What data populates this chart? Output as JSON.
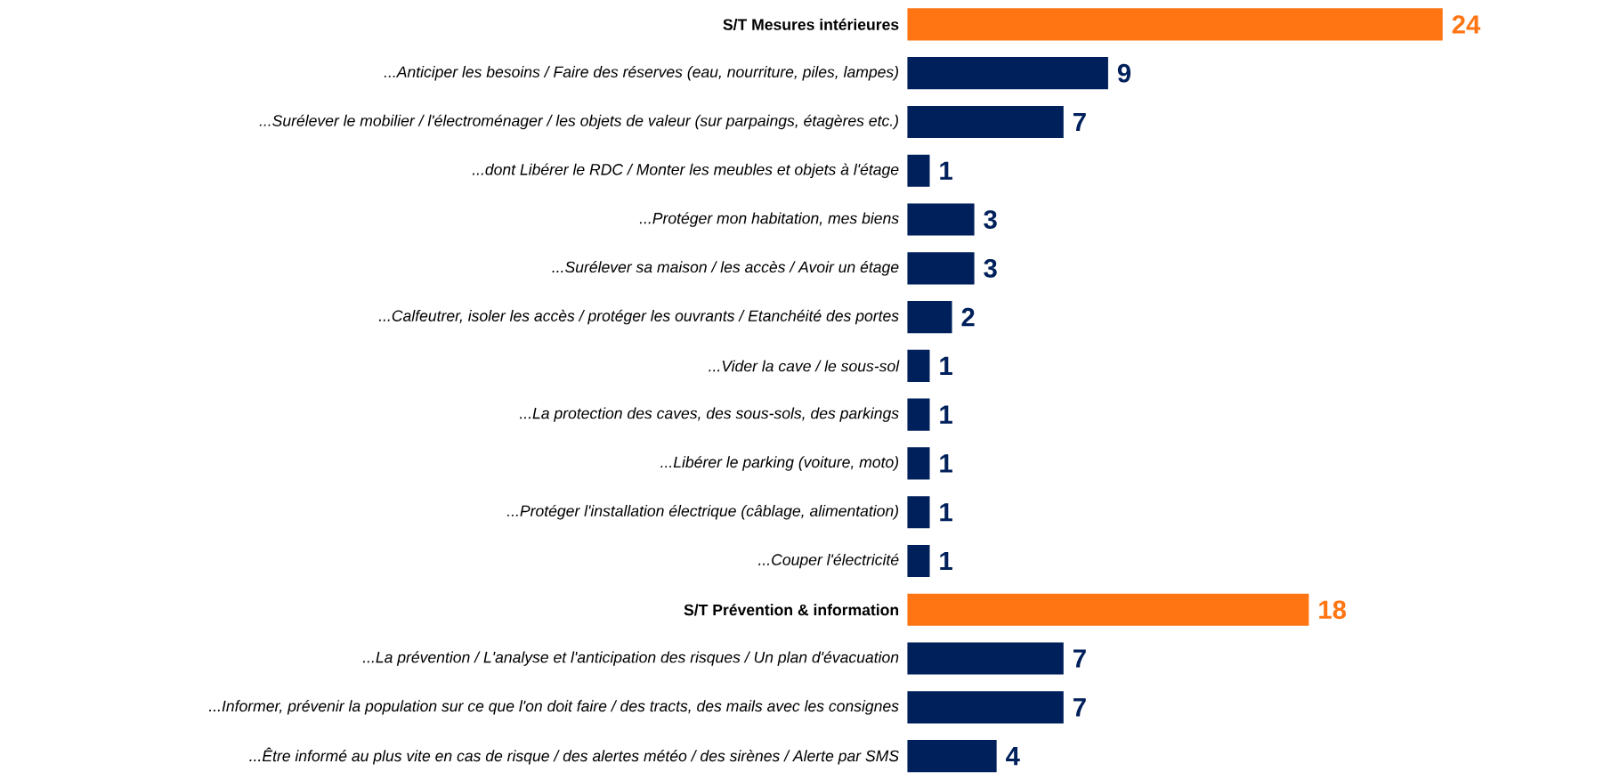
{
  "chart_data": {
    "type": "bar",
    "orientation": "horizontal",
    "data_labels": true,
    "categories": [
      "S/T Mesures intérieures",
      "...Anticiper les besoins / Faire des réserves (eau, nourriture, piles, lampes)",
      "...Surélever le mobilier / l'électroménager / les objets de valeur (sur parpaings, étagères etc.)",
      "...dont Libérer le RDC / Monter les meubles et objets à l'étage",
      "...Protéger mon habitation, mes biens",
      "...Surélever sa maison / les accès / Avoir un étage",
      "...Calfeutrer, isoler les accès / protéger les ouvrants / Etanchéité des portes",
      "...Vider la cave / le sous-sol",
      "...La protection des caves, des sous-sols, des parkings",
      "...Libérer le parking (voiture, moto)",
      "...Protéger l'installation électrique (câblage, alimentation)",
      "...Couper l'électricité",
      "S/T Prévention & information",
      "...La prévention / L'analyse et l'anticipation des risques / Un plan d'évacuation",
      "...Informer, prévenir la population sur ce que l'on doit faire / des tracts, des mails avec les consignes",
      "...Être informé au plus vite en cas de risque / des alertes météo / des sirènes / Alerte par SMS"
    ],
    "values": [
      24,
      9,
      7,
      1,
      3,
      3,
      2,
      1,
      1,
      1,
      1,
      1,
      18,
      7,
      7,
      4
    ],
    "colors": [
      "#ff7514",
      "#00205b",
      "#00205b",
      "#00205b",
      "#00205b",
      "#00205b",
      "#00205b",
      "#00205b",
      "#00205b",
      "#00205b",
      "#00205b",
      "#00205b",
      "#ff7514",
      "#00205b",
      "#00205b",
      "#00205b"
    ]
  }
}
